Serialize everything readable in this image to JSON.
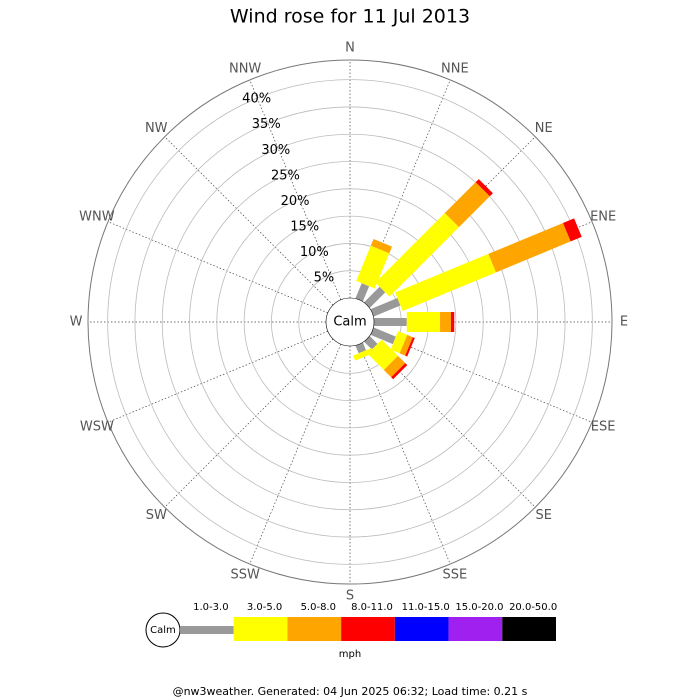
{
  "chart_data": {
    "type": "windrose",
    "title": "Wind rose for 11 Jul 2013",
    "categories": [
      "N",
      "NNE",
      "NE",
      "ENE",
      "E",
      "ESE",
      "SE",
      "SSE",
      "S",
      "SSW",
      "SW",
      "WSW",
      "W",
      "WNW",
      "NW",
      "NNW"
    ],
    "center_label": "Calm",
    "legend_calm": "Calm",
    "legend_unit": "mph",
    "footer": "@nw3weather. Generated: 04 Jun 2025 06:32; Load time: 0.21 s",
    "rlim": [
      0,
      43.6
    ],
    "rticks": [
      {
        "value": 5,
        "label": "5%"
      },
      {
        "value": 10,
        "label": "10%"
      },
      {
        "value": 15,
        "label": "15%"
      },
      {
        "value": 20,
        "label": "20%"
      },
      {
        "value": 25,
        "label": "25%"
      },
      {
        "value": 30,
        "label": "30%"
      },
      {
        "value": 35,
        "label": "35%"
      },
      {
        "value": 40,
        "label": "40%"
      }
    ],
    "series": [
      {
        "name": "1.0-3.0",
        "color": "#999999",
        "values": [
          0,
          3,
          4,
          5.3,
          6,
          4.4,
          2,
          1.5,
          0,
          0,
          0,
          0,
          0,
          0,
          0,
          0
        ]
      },
      {
        "name": "3.0-5.0",
        "color": "#ffff00",
        "values": [
          0,
          7,
          18,
          18.5,
          6.1,
          1.8,
          4.2,
          1,
          0,
          0,
          0,
          0,
          0,
          0,
          0,
          0
        ]
      },
      {
        "name": "5.0-8.0",
        "color": "#ffa500",
        "values": [
          0,
          1.3,
          8,
          14.8,
          2,
          1.1,
          1.9,
          0,
          0,
          0,
          0,
          0,
          0,
          0,
          0,
          0
        ]
      },
      {
        "name": "8.0-11.0",
        "color": "#ff0000",
        "values": [
          0,
          0,
          0.8,
          2.2,
          0.6,
          0.4,
          0.5,
          0,
          0,
          0,
          0,
          0,
          0,
          0,
          0,
          0
        ]
      },
      {
        "name": "11.0-15.0",
        "color": "#0000ff",
        "values": [
          0,
          0,
          0,
          0,
          0,
          0,
          0,
          0,
          0,
          0,
          0,
          0,
          0,
          0,
          0,
          0
        ]
      },
      {
        "name": "15.0-20.0",
        "color": "#a020f0",
        "values": [
          0,
          0,
          0,
          0,
          0,
          0,
          0,
          0,
          0,
          0,
          0,
          0,
          0,
          0,
          0,
          0
        ]
      },
      {
        "name": "20.0-50.0",
        "color": "#000000",
        "values": [
          0,
          0,
          0,
          0,
          0,
          0,
          0,
          0,
          0,
          0,
          0,
          0,
          0,
          0,
          0,
          0
        ]
      }
    ]
  }
}
